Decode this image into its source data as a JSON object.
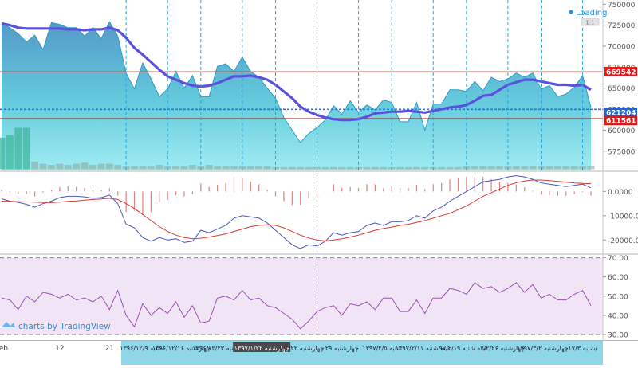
{
  "status": {
    "loading_text": "Loading",
    "loading_dot_color": "#2196f3"
  },
  "watermark": {
    "text": "charts by TradingView",
    "icon": "tradingview-logo-icon"
  },
  "chart_data": [
    {
      "type": "area",
      "panel": "price",
      "y_ticks": [
        575000,
        600000,
        625000,
        650000,
        675000,
        700000,
        725000,
        750000
      ],
      "y_tick_labels": [
        "575000",
        "600000",
        "625000",
        "650000",
        "675000",
        "700000",
        "725000",
        "750000"
      ],
      "ylim": [
        552000,
        755000
      ],
      "price_labels": [
        {
          "text": "669542",
          "value": 669542,
          "color": "#e01919"
        },
        {
          "text": "621204",
          "value": 621204,
          "color": "#1e63d6"
        },
        {
          "text": "611561",
          "value": 611561,
          "color": "#e01919"
        }
      ],
      "horizontal_lines": [
        {
          "value": 669542,
          "color": "#a0413c",
          "style": "solid"
        },
        {
          "value": 624700,
          "color": "#2b72f0",
          "style": "dotted"
        },
        {
          "value": 613800,
          "color": "#a0413c",
          "style": "solid"
        }
      ],
      "series": [
        {
          "kind": "area",
          "color": "#2e9bc4",
          "values": [
            728000,
            722000,
            715000,
            705000,
            713000,
            696000,
            728000,
            726000,
            722000,
            722000,
            712000,
            722000,
            709000,
            729000,
            712000,
            668000,
            649000,
            680000,
            661000,
            640000,
            649000,
            670000,
            650000,
            665000,
            640000,
            640000,
            676000,
            679000,
            670000,
            687000,
            670000,
            663000,
            650000,
            638000,
            615000,
            600000,
            585000,
            596000,
            603000,
            612000,
            629000,
            619000,
            635000,
            621000,
            630000,
            624000,
            636000,
            633000,
            610000,
            610000,
            633000,
            600000,
            631000,
            631000,
            648000,
            648000,
            646000,
            658000,
            647000,
            663000,
            658000,
            661000,
            668000,
            663000,
            668000,
            649000,
            653000,
            640000,
            643000,
            651000,
            665000,
            627000
          ]
        },
        {
          "kind": "moving-average",
          "color": "#5a52dc",
          "values": [
            727000,
            725000,
            722000,
            721000,
            721000,
            721000,
            721000,
            721000,
            720000,
            720000,
            719000,
            720000,
            720000,
            722000,
            719000,
            710000,
            698000,
            690000,
            681000,
            672000,
            664000,
            660000,
            656000,
            653000,
            652000,
            653000,
            656000,
            660000,
            664000,
            664000,
            665000,
            663000,
            660000,
            654000,
            646000,
            638000,
            628000,
            622000,
            618000,
            615000,
            613000,
            612000,
            612000,
            613000,
            616000,
            620000,
            621000,
            622000,
            622000,
            623000,
            622000,
            621000,
            623000,
            625000,
            627000,
            628000,
            630000,
            635000,
            641000,
            642000,
            648000,
            654000,
            657000,
            660000,
            660000,
            658000,
            656000,
            654000,
            654000,
            653000,
            654000,
            648000
          ]
        }
      ],
      "volume": [
        29,
        31,
        38,
        38,
        7,
        5,
        4,
        5,
        4,
        5,
        6,
        4,
        5,
        5,
        4,
        3,
        3,
        3,
        3,
        4,
        3,
        3,
        3,
        4,
        3,
        4,
        3,
        3,
        3,
        3,
        3,
        3,
        3,
        2,
        2,
        2,
        2,
        2,
        2,
        2,
        2,
        2,
        2,
        2,
        2,
        2,
        2,
        2,
        2,
        2,
        2,
        2,
        2,
        2,
        2,
        2,
        3,
        3,
        3,
        3,
        3,
        3,
        3,
        3,
        3,
        3,
        3,
        3,
        3,
        3,
        3,
        3
      ]
    },
    {
      "type": "line",
      "panel": "macd",
      "y_ticks": [
        0,
        -10000,
        -20000
      ],
      "y_tick_labels": [
        "0.0000",
        "-10000.0000",
        "-20000.0000"
      ],
      "ylim": [
        -25500,
        8000
      ],
      "series": [
        {
          "kind": "macd-line",
          "color": "#4b57c8",
          "values": [
            -3000,
            -4000,
            -4500,
            -5300,
            -6500,
            -5000,
            -4000,
            -2500,
            -2000,
            -2000,
            -2200,
            -2800,
            -2500,
            -1500,
            -5000,
            -13500,
            -15000,
            -19000,
            -20500,
            -19000,
            -20000,
            -19500,
            -21000,
            -20500,
            -16000,
            -17000,
            -15500,
            -14000,
            -11000,
            -10000,
            -10500,
            -11000,
            -13000,
            -16000,
            -19000,
            -22000,
            -23500,
            -22000,
            -22500,
            -20500,
            -17000,
            -18000,
            -17000,
            -16500,
            -14000,
            -13000,
            -14000,
            -12500,
            -12500,
            -12000,
            -10000,
            -11000,
            -8000,
            -6500,
            -4000,
            -2000,
            0,
            2000,
            4000,
            4500,
            5000,
            6000,
            6500,
            6000,
            5000,
            3500,
            3000,
            2500,
            2000,
            2500,
            3000,
            1500
          ]
        },
        {
          "kind": "signal-line",
          "color": "#d83a35",
          "values": [
            -4000,
            -4100,
            -4200,
            -4300,
            -4400,
            -4500,
            -4600,
            -4400,
            -4100,
            -3900,
            -3600,
            -3300,
            -3100,
            -2800,
            -3300,
            -5000,
            -7000,
            -9500,
            -12000,
            -14500,
            -16500,
            -18000,
            -19000,
            -19500,
            -19300,
            -18800,
            -18200,
            -17500,
            -16500,
            -15500,
            -14500,
            -14000,
            -13700,
            -14000,
            -15000,
            -16500,
            -18000,
            -19200,
            -20000,
            -20400,
            -20000,
            -19500,
            -18800,
            -18000,
            -17000,
            -16000,
            -15300,
            -14700,
            -14000,
            -13500,
            -12800,
            -12000,
            -11000,
            -10000,
            -9000,
            -7500,
            -6000,
            -4000,
            -2000,
            -500,
            1000,
            2500,
            3600,
            4300,
            4700,
            4700,
            4500,
            4200,
            3800,
            3500,
            3300,
            3200
          ]
        }
      ],
      "histogram": {
        "color": "#e0827a",
        "values": [
          700,
          -300,
          -1000,
          -1000,
          -2000,
          -500,
          600,
          1900,
          2100,
          1900,
          1400,
          500,
          600,
          1300,
          -1700,
          -8500,
          -8000,
          -9500,
          -8500,
          -4500,
          -3500,
          -1500,
          -2000,
          -1000,
          3300,
          1800,
          2700,
          3500,
          5500,
          5500,
          4000,
          3000,
          700,
          -2000,
          -4000,
          -5500,
          -5500,
          -2800,
          -2500,
          -100,
          3000,
          1500,
          1800,
          1500,
          3000,
          3000,
          1300,
          2200,
          1500,
          1500,
          2800,
          1000,
          3000,
          3500,
          5000,
          5500,
          6000,
          6000,
          6000,
          5000,
          4000,
          3500,
          2900,
          1700,
          300,
          -1200,
          -1500,
          -1700,
          -1800,
          -1000,
          -300,
          -1700
        ]
      }
    },
    {
      "type": "line",
      "panel": "rsi",
      "y_ticks": [
        30,
        40,
        50,
        60,
        70
      ],
      "y_tick_labels": [
        "30.00",
        "40.00",
        "50.00",
        "60.00",
        "70.00"
      ],
      "ylim": [
        27.5,
        71.5
      ],
      "band": [
        30,
        70
      ],
      "series": [
        {
          "kind": "rsi",
          "color": "#9c4fb8",
          "values": [
            49,
            48,
            43,
            50,
            47,
            52,
            51,
            49,
            51,
            48,
            49,
            47,
            50,
            43,
            53,
            40,
            34,
            46,
            40,
            44,
            41,
            47,
            39,
            45,
            36,
            37,
            49,
            50,
            48,
            53,
            48,
            49,
            45,
            44,
            41,
            38,
            33,
            37,
            42,
            44,
            45,
            40,
            46,
            45,
            47,
            43,
            49,
            49,
            42,
            42,
            48,
            41,
            49,
            49,
            54,
            53,
            51,
            57,
            54,
            55,
            52,
            54,
            57,
            52,
            56,
            49,
            51,
            48,
            48,
            51,
            53,
            45
          ]
        }
      ]
    }
  ],
  "time_axis": {
    "plain_labels": [
      {
        "text": "Feb",
        "idx": 0
      },
      {
        "text": "12",
        "idx": 7
      },
      {
        "text": "21",
        "idx": 13
      }
    ],
    "date_labels": [
      "۱۳۹۶/۱۲/۹ شنبه",
      "چهارشنبه ۱۳۹۶/۱۲/۱۶",
      "چهارشنبه ۱۳۹۶/۱۲/۲۳",
      "چهارشنبه ۱۳۹۷/۱/۲۲",
      "۷/۱/۲۲ چهارشنبه",
      "چهارشنبه ۲۹",
      "۱۳۹۷/۲/۵ شنبه",
      "۱۳۹۷/۲/۱۱ سه شنبه",
      "۹۷/۲/۱۹ سه شنبه",
      "۷/۲/۲۶ چهارشنبه",
      "۱۳۹۷/۳/۲ چهارشنبه",
      "شنبه ۱۷/۳/"
    ],
    "highlighted_label_index": 3
  },
  "crosshair": {
    "idx": 38
  },
  "vertical_guides_idx": [
    15,
    20,
    24,
    29,
    33,
    38,
    43,
    47,
    52,
    56,
    61,
    65,
    70
  ]
}
